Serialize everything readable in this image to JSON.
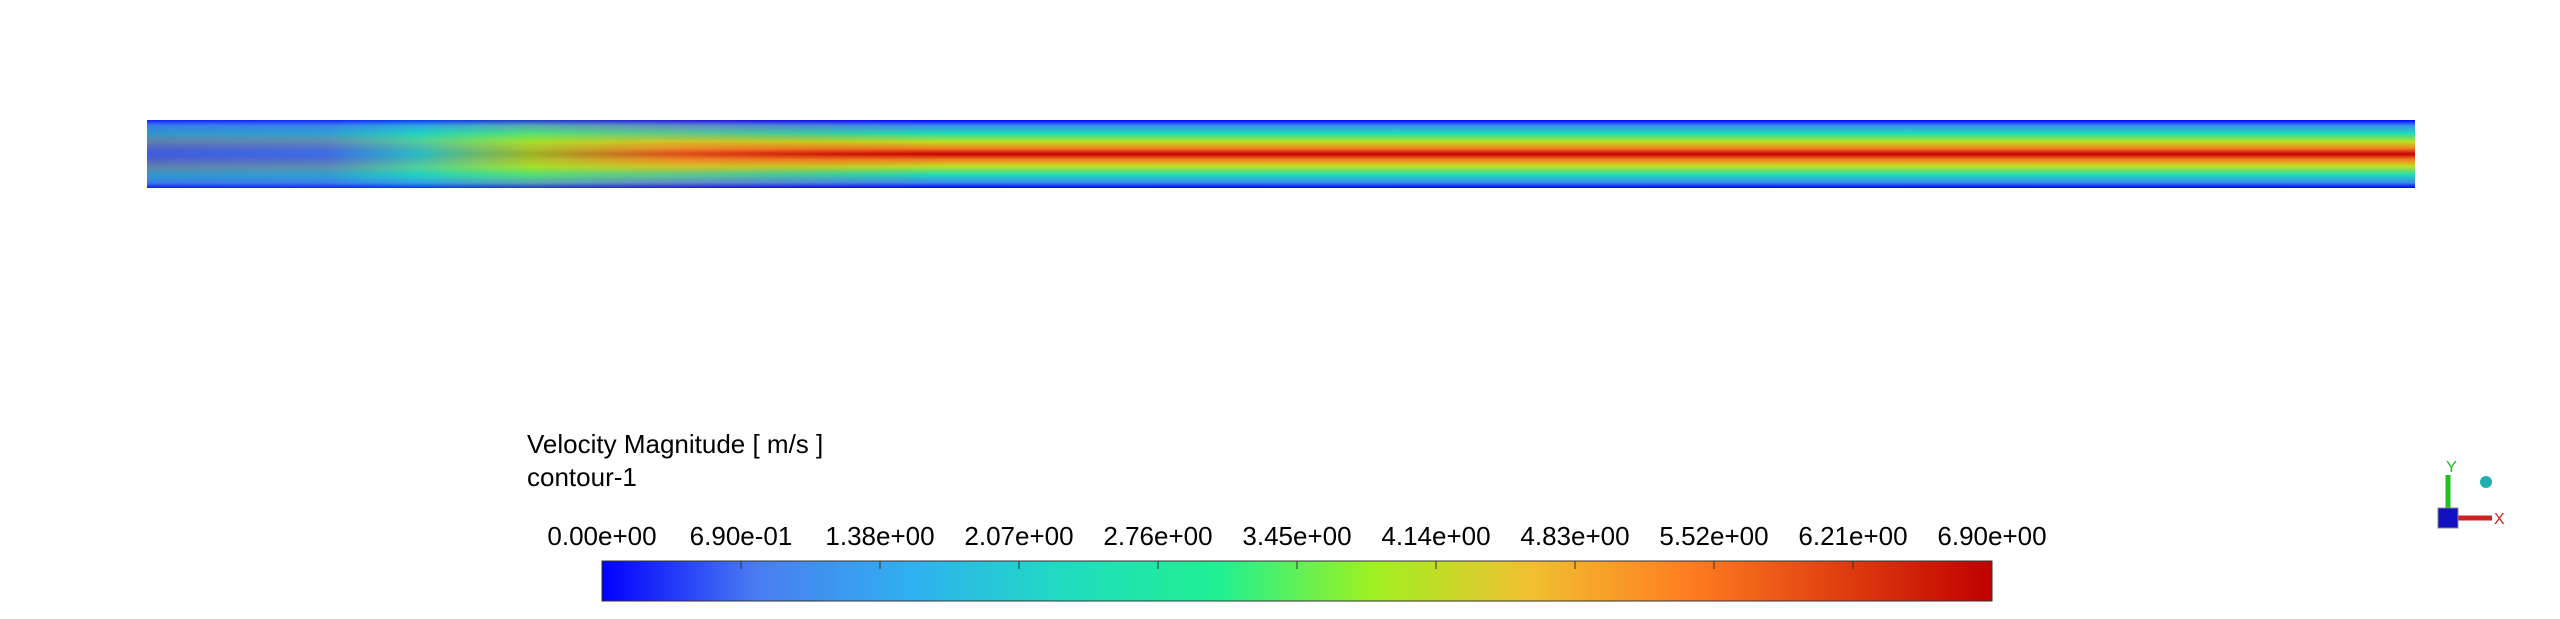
{
  "chart_data": {
    "type": "contour",
    "title": "Velocity Magnitude [ m/s ]",
    "subtitle": "contour-1",
    "clim": [
      0,
      6.9
    ],
    "cticks": [
      {
        "value": 0,
        "label": "0.00e+00"
      },
      {
        "value": 0.69,
        "label": "6.90e-01"
      },
      {
        "value": 1.38,
        "label": "1.38e+00"
      },
      {
        "value": 2.07,
        "label": "2.07e+00"
      },
      {
        "value": 2.76,
        "label": "2.76e+00"
      },
      {
        "value": 3.45,
        "label": "3.45e+00"
      },
      {
        "value": 4.14,
        "label": "4.14e+00"
      },
      {
        "value": 4.83,
        "label": "4.83e+00"
      },
      {
        "value": 5.52,
        "label": "5.52e+00"
      },
      {
        "value": 6.21,
        "label": "6.21e+00"
      },
      {
        "value": 6.9,
        "label": "6.90e+00"
      }
    ],
    "colormap": [
      "#0000ff",
      "#4a7cf0",
      "#2fb0f0",
      "#1fdcc0",
      "#20f090",
      "#a0f020",
      "#f0c030",
      "#ff8020",
      "#e04010",
      "#c00000"
    ],
    "axis_triad": {
      "x_label": "X",
      "y_label": "Y"
    }
  }
}
